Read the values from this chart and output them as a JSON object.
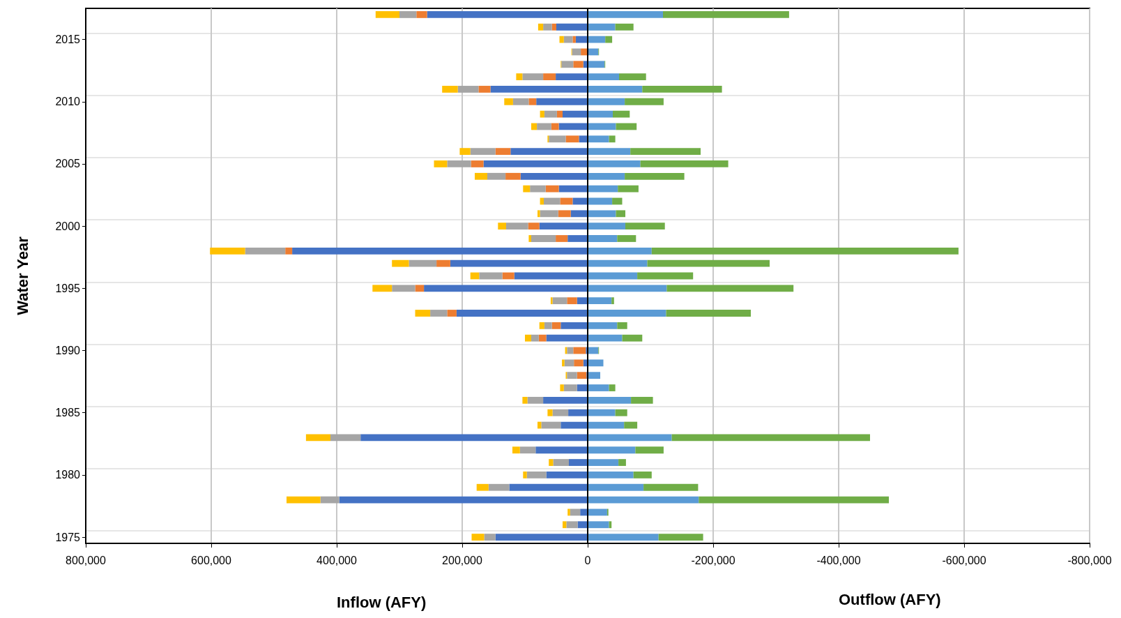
{
  "chart_data": {
    "type": "bar",
    "orientation": "horizontal",
    "stacked": true,
    "ylabel": "Water Year",
    "xlabel": "Inflow (AFY)",
    "annotations": [
      "Outflow (AFY)"
    ],
    "categories": [
      null,
      null,
      "2015",
      null,
      null,
      null,
      null,
      "2010",
      null,
      null,
      null,
      null,
      "2005",
      null,
      null,
      null,
      null,
      "2000",
      null,
      null,
      null,
      null,
      "1995",
      null,
      null,
      null,
      null,
      "1990",
      null,
      null,
      null,
      null,
      "1985",
      null,
      null,
      null,
      null,
      "1980",
      null,
      null,
      null,
      null,
      "1975"
    ],
    "series": [
      {
        "color": "#4472c4",
        "values": [
          256000,
          50000,
          19000,
          0,
          7000,
          51000,
          155000,
          82000,
          40000,
          46000,
          14000,
          123000,
          166000,
          107000,
          46000,
          24000,
          27000,
          77000,
          32000,
          471000,
          219000,
          117000,
          261000,
          17000,
          209000,
          43000,
          66000,
          3000,
          7000,
          2000,
          17000,
          71000,
          31000,
          43000,
          362000,
          83000,
          30000,
          66000,
          125000,
          396000,
          12000,
          16000,
          147000
        ]
      },
      {
        "color": "#ed7d31",
        "values": [
          17000,
          7000,
          5000,
          11000,
          16000,
          20000,
          19000,
          12000,
          9000,
          12000,
          21000,
          24000,
          20000,
          24000,
          21000,
          20000,
          20000,
          18000,
          19000,
          11000,
          22000,
          19000,
          14000,
          16000,
          15000,
          14000,
          12000,
          20000,
          15000,
          15000,
          0,
          0,
          0,
          0,
          0,
          0,
          0,
          0,
          0,
          0,
          0,
          0,
          0
        ]
      },
      {
        "color": "#a5a5a5",
        "values": [
          27000,
          14000,
          14000,
          14000,
          19000,
          33000,
          33000,
          25000,
          20000,
          23000,
          27000,
          40000,
          38000,
          29000,
          25000,
          26000,
          29000,
          35000,
          39000,
          64000,
          44000,
          37000,
          37000,
          23000,
          27000,
          12000,
          12000,
          10000,
          15000,
          16000,
          21000,
          25000,
          25000,
          31000,
          48000,
          25000,
          25000,
          31000,
          33000,
          30000,
          16000,
          18000,
          18000
        ]
      },
      {
        "color": "#ffc000",
        "values": [
          38000,
          8000,
          7000,
          1000,
          1000,
          10000,
          25000,
          14000,
          7000,
          9000,
          2000,
          17000,
          21000,
          20000,
          11000,
          6000,
          4000,
          13000,
          4000,
          56000,
          27000,
          14000,
          31000,
          3000,
          24000,
          8000,
          10000,
          3000,
          4000,
          2000,
          6000,
          8000,
          8000,
          6000,
          39000,
          12000,
          7000,
          6000,
          19000,
          54000,
          4000,
          6000,
          20000
        ]
      },
      {
        "color": "#5b9bd5",
        "values": [
          -120000,
          -44000,
          -28000,
          -17000,
          -27000,
          -50000,
          -87000,
          -59000,
          -40000,
          -45000,
          -34000,
          -68000,
          -84000,
          -59000,
          -48000,
          -39000,
          -45000,
          -60000,
          -47000,
          -102000,
          -95000,
          -79000,
          -126000,
          -38000,
          -125000,
          -47000,
          -55000,
          -17000,
          -25000,
          -20000,
          -34000,
          -69000,
          -44000,
          -58000,
          -134000,
          -76000,
          -49000,
          -73000,
          -89000,
          -177000,
          -31000,
          -34000,
          -113000
        ]
      },
      {
        "color": "#70ad47",
        "values": [
          -201000,
          -29000,
          -11000,
          -1000,
          -1000,
          -43000,
          -127000,
          -62000,
          -27000,
          -33000,
          -10000,
          -112000,
          -140000,
          -95000,
          -33000,
          -16000,
          -15000,
          -63000,
          -30000,
          -489000,
          -195000,
          -89000,
          -202000,
          -4000,
          -135000,
          -16000,
          -32000,
          -1000,
          0,
          0,
          -10000,
          -35000,
          -19000,
          -21000,
          -316000,
          -45000,
          -12000,
          -29000,
          -87000,
          -303000,
          -2000,
          -4000,
          -71000
        ]
      }
    ],
    "xlim": [
      800000,
      -800000
    ],
    "xticks": [
      {
        "value": 800000,
        "label": "800,000"
      },
      {
        "value": 600000,
        "label": "600,000"
      },
      {
        "value": 400000,
        "label": "400,000"
      },
      {
        "value": 200000,
        "label": "200,000"
      },
      0,
      {
        "value": -200000,
        "label": "-200,000"
      },
      {
        "value": -400000,
        "label": "-400,000"
      },
      {
        "value": -600000,
        "label": "-600,000"
      },
      {
        "value": -800000,
        "label": "-800,000"
      }
    ],
    "ref_lines": [
      {
        "axis": "x",
        "value": 0,
        "color": "#000000"
      }
    ],
    "grid": true
  }
}
